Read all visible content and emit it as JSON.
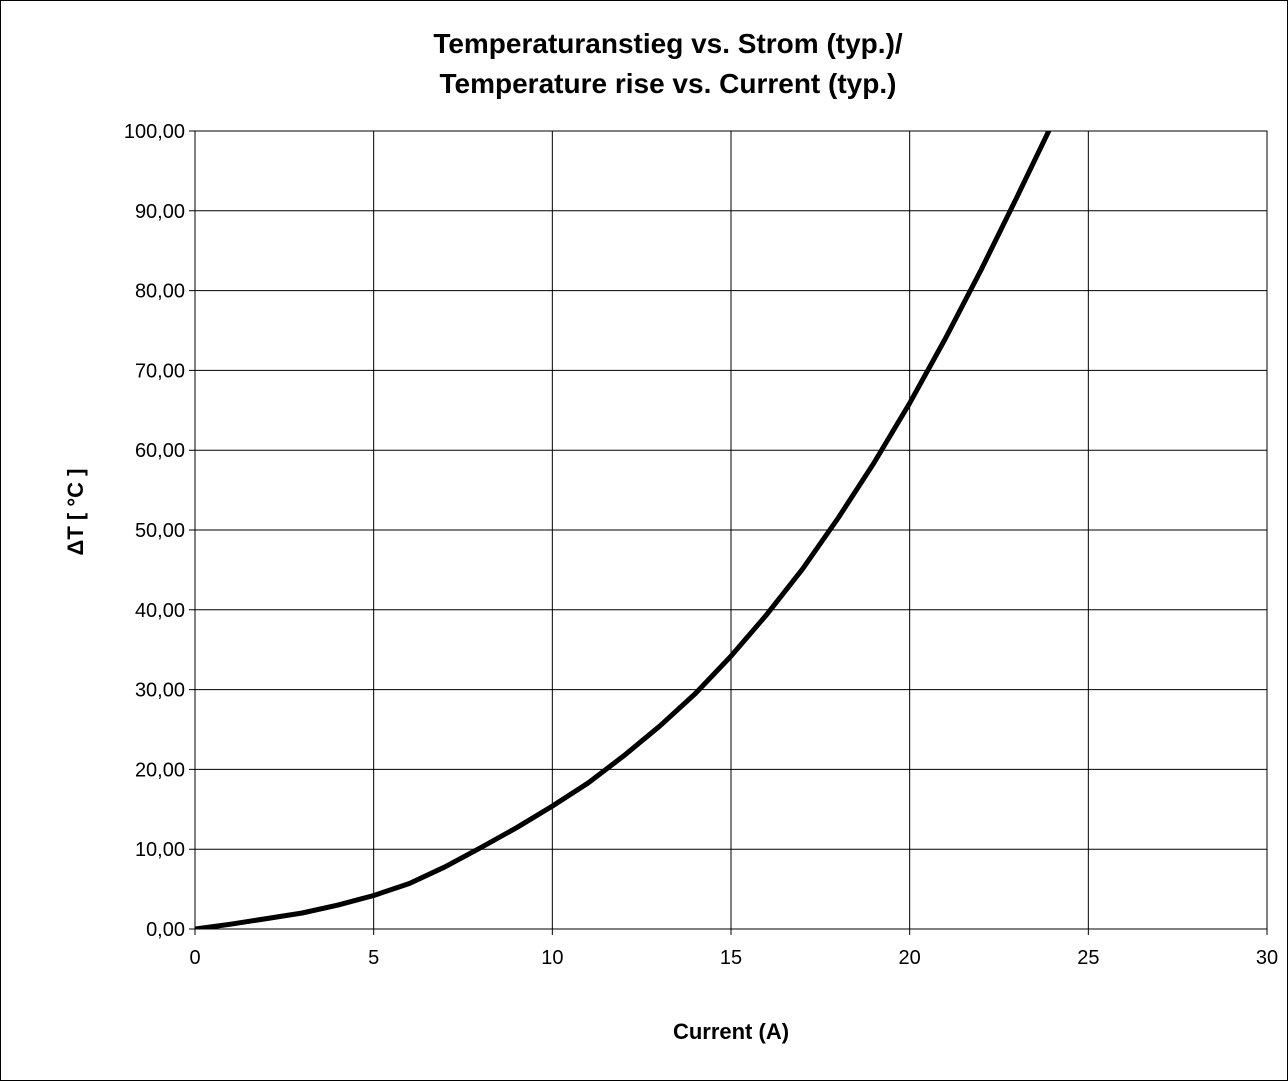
{
  "chart_data": {
    "type": "line",
    "title_line1": "Temperaturanstieg vs. Strom (typ.)/",
    "title_line2": "Temperature rise vs. Current (typ.)",
    "xlabel": "Current (A)",
    "ylabel": "ΔT [ °C ]",
    "xlim": [
      0,
      30
    ],
    "ylim": [
      0,
      100
    ],
    "x_ticks": [
      "0",
      "5",
      "10",
      "15",
      "20",
      "25",
      "30"
    ],
    "y_ticks": [
      "0,00",
      "10,00",
      "20,00",
      "30,00",
      "40,00",
      "50,00",
      "60,00",
      "70,00",
      "80,00",
      "90,00",
      "100,00"
    ],
    "grid": true,
    "legend": "none",
    "line_color": "#000000",
    "series": [
      {
        "x": [
          0,
          1,
          2,
          3,
          4,
          5,
          6,
          7,
          8,
          9,
          10,
          11,
          12,
          13,
          14,
          15,
          16,
          17,
          18,
          19,
          20,
          21,
          22,
          23,
          24,
          25
        ],
        "values": [
          0,
          0.6,
          1.3,
          2.0,
          3.0,
          4.2,
          5.7,
          7.8,
          10.2,
          12.7,
          15.4,
          18.3,
          21.7,
          25.4,
          29.5,
          34.2,
          39.4,
          45.1,
          51.5,
          58.4,
          65.9,
          74.0,
          82.6,
          91.7,
          101.0,
          101.0
        ]
      }
    ]
  }
}
